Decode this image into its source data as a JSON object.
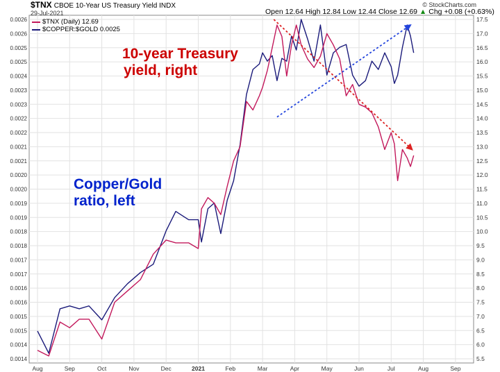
{
  "header": {
    "ticker": "$TNX",
    "description": "CBOE 10-Year US Treasury Yield INDX",
    "date": "29-Jul-2021",
    "brand": "© StockCharts.com",
    "open_label": "Open",
    "open": "12.64",
    "high_label": "High",
    "high": "12.84",
    "low_label": "Low",
    "low": "12.44",
    "close_label": "Close",
    "close": "12.69",
    "chg_label": "Chg",
    "chg": "+0.08 (+0.63%)",
    "chg_arrow": "▲"
  },
  "legend": [
    {
      "text": "$TNX (Daily) 12.69",
      "color": "#c2185b"
    },
    {
      "text": "$COPPER:$GOLD 0.0025",
      "color": "#1a1a7a"
    }
  ],
  "annotations": {
    "treasury": [
      "10-year Treasury",
      "yield, right"
    ],
    "coppergold": [
      "Copper/Gold",
      "ratio, left"
    ]
  },
  "chart_data": {
    "type": "line",
    "x_ticks": [
      "Aug",
      "Sep",
      "Oct",
      "Nov",
      "Dec",
      "2021",
      "Feb",
      "Mar",
      "Apr",
      "May",
      "Jun",
      "Jul",
      "Aug",
      "Sep"
    ],
    "left_axis": {
      "ticks": [
        "0.0026",
        "0.0026",
        "0.0025",
        "0.0025",
        "0.0024",
        "0.0023",
        "0.0023",
        "0.0022",
        "0.0022",
        "0.0021",
        "0.0021",
        "0.0020",
        "0.0020",
        "0.0019",
        "0.0019",
        "0.0018",
        "0.0018",
        "0.0017",
        "0.0017",
        "0.0016",
        "0.0016",
        "0.0015",
        "0.0015",
        "0.0014",
        "0.0014"
      ]
    },
    "right_axis": {
      "ticks": [
        "17.5",
        "17.0",
        "16.5",
        "16.0",
        "15.5",
        "15.0",
        "14.5",
        "14.0",
        "13.5",
        "13.0",
        "12.5",
        "12.0",
        "11.5",
        "11.0",
        "10.5",
        "10.0",
        "9.5",
        "9.0",
        "8.5",
        "8.0",
        "7.5",
        "7.0",
        "6.5",
        "6.0",
        "5.5"
      ],
      "range": [
        5.25,
        17.75
      ]
    },
    "series": [
      {
        "name": "$TNX (Daily) 12.69",
        "axis": "right",
        "color": "#c2185b",
        "x": [
          0,
          0.35,
          0.7,
          1.0,
          1.3,
          1.6,
          2.0,
          2.4,
          2.8,
          3.2,
          3.6,
          4.0,
          4.3,
          4.7,
          5.0,
          5.1,
          5.3,
          5.5,
          5.7,
          5.9,
          6.1,
          6.3,
          6.5,
          6.7,
          6.9,
          7.0,
          7.15,
          7.3,
          7.45,
          7.6,
          7.75,
          7.9,
          8.05,
          8.2,
          8.4,
          8.6,
          8.8,
          9.0,
          9.2,
          9.4,
          9.6,
          9.8,
          10.0,
          10.2,
          10.4,
          10.6,
          10.8,
          11.0,
          11.1,
          11.2,
          11.35,
          11.5,
          11.6,
          11.7
        ],
        "y": [
          5.8,
          5.6,
          6.8,
          6.6,
          6.9,
          6.9,
          6.2,
          7.5,
          7.9,
          8.3,
          9.2,
          9.7,
          9.6,
          9.6,
          9.4,
          10.8,
          11.2,
          11.0,
          10.6,
          11.6,
          12.5,
          13.0,
          14.6,
          14.3,
          14.8,
          15.1,
          15.7,
          16.5,
          17.3,
          16.9,
          15.5,
          16.6,
          17.3,
          16.6,
          16.1,
          15.8,
          16.2,
          17.0,
          16.6,
          16.1,
          14.8,
          15.2,
          14.5,
          14.4,
          14.2,
          13.7,
          12.9,
          13.5,
          13.1,
          11.8,
          12.9,
          12.6,
          12.3,
          12.69
        ]
      },
      {
        "name": "$COPPER:$GOLD 0.0025",
        "axis": "left",
        "color": "#1a1a7a",
        "x": [
          0,
          0.35,
          0.7,
          1.0,
          1.3,
          1.6,
          2.0,
          2.4,
          2.8,
          3.2,
          3.6,
          4.0,
          4.3,
          4.7,
          5.0,
          5.1,
          5.3,
          5.5,
          5.7,
          5.9,
          6.1,
          6.3,
          6.5,
          6.7,
          6.9,
          7.0,
          7.15,
          7.3,
          7.45,
          7.6,
          7.75,
          7.9,
          8.05,
          8.2,
          8.4,
          8.6,
          8.8,
          9.0,
          9.2,
          9.4,
          9.6,
          9.8,
          10.0,
          10.2,
          10.4,
          10.6,
          10.8,
          11.0,
          11.1,
          11.2,
          11.35,
          11.5,
          11.6,
          11.7
        ],
        "y": [
          0.00148,
          0.0014,
          0.00156,
          0.00157,
          0.00156,
          0.00157,
          0.00152,
          0.0016,
          0.00165,
          0.00169,
          0.00172,
          0.00184,
          0.00191,
          0.00188,
          0.00188,
          0.0018,
          0.00192,
          0.00194,
          0.00183,
          0.00195,
          0.00202,
          0.00215,
          0.00233,
          0.00242,
          0.00244,
          0.00248,
          0.00245,
          0.00247,
          0.00238,
          0.00246,
          0.00245,
          0.00254,
          0.00249,
          0.0026,
          0.00253,
          0.00245,
          0.00258,
          0.0024,
          0.00248,
          0.0025,
          0.00251,
          0.0024,
          0.00236,
          0.00238,
          0.00245,
          0.00242,
          0.00248,
          0.00243,
          0.00237,
          0.0024,
          0.0025,
          0.00258,
          0.00254,
          0.00248
        ]
      }
    ],
    "trendlines": [
      {
        "color": "#dd2222",
        "axis": "right",
        "x": [
          7.35,
          11.65
        ],
        "y": [
          17.5,
          12.9
        ]
      },
      {
        "color": "#2244dd",
        "axis": "right",
        "x": [
          7.45,
          11.6
        ],
        "y": [
          14.05,
          17.3
        ]
      }
    ]
  }
}
